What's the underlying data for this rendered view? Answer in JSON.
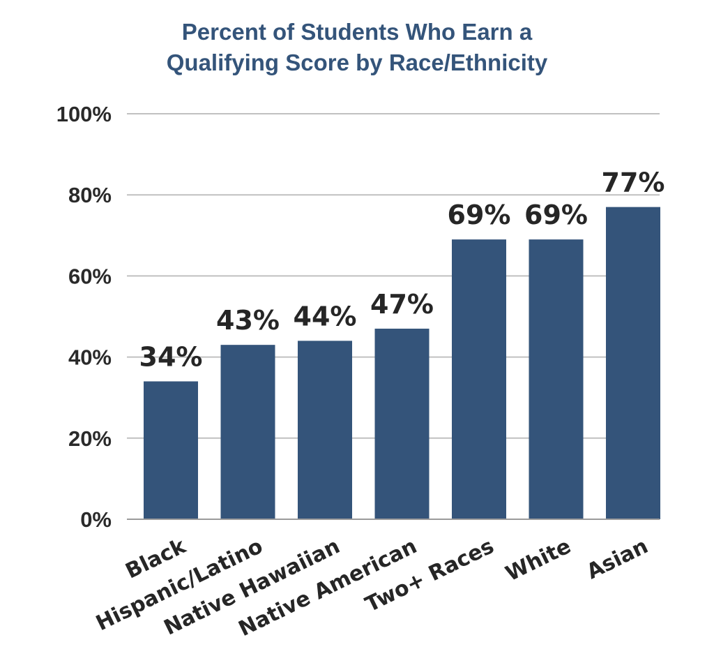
{
  "chart_data": {
    "type": "bar",
    "title_lines": [
      "Percent of Students Who Earn a",
      "Qualifying Score by Race/Ethnicity"
    ],
    "categories": [
      "Black",
      "Hispanic/Latino",
      "Native Hawaiian",
      "Native American",
      "Two+ Races",
      "White",
      "Asian"
    ],
    "values": [
      34,
      43,
      44,
      47,
      69,
      69,
      77
    ],
    "value_labels": [
      "34%",
      "43%",
      "44%",
      "47%",
      "69%",
      "69%",
      "77%"
    ],
    "yticks": [
      0,
      20,
      40,
      60,
      80,
      100
    ],
    "ytick_labels": [
      "0%",
      "20%",
      "40%",
      "60%",
      "80%",
      "100%"
    ],
    "ylim": [
      0,
      100
    ],
    "xlabel": "",
    "ylabel": "",
    "grid": true,
    "bar_color": "#34547a",
    "grid_color": "#c0c0c0"
  }
}
